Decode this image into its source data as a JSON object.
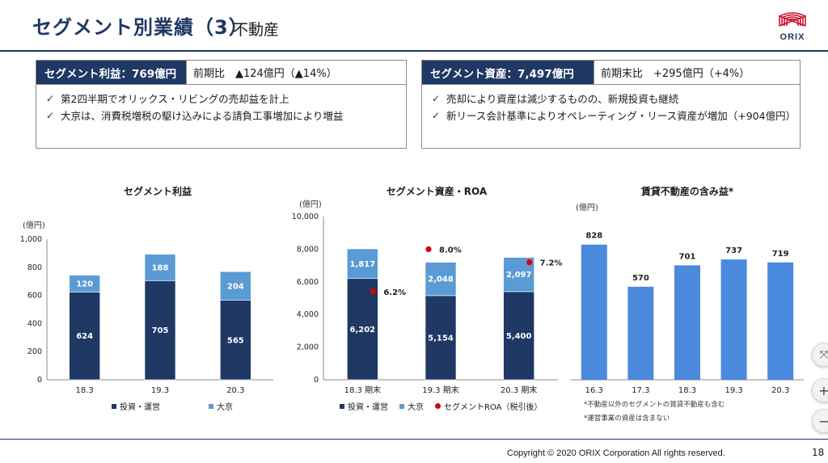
{
  "header": {
    "title": "セグメント別業績（3）",
    "subtitle": "不動産",
    "logo_text": "ORIX"
  },
  "summary_left": {
    "label": "セグメント利益：769億円",
    "compare": "前期比　▲124億円（▲14%）",
    "bullets": [
      "第2四半期でオリックス・リビングの売却益を計上",
      "大京は、消費税増税の駆け込みによる請負工事増加により増益"
    ]
  },
  "summary_right": {
    "label": "セグメント資産：7,497億円",
    "compare": "前期末比　+295億円（+4%）",
    "bullets": [
      "売却により資産は減少するものの、新規投資も継続",
      "新リース会計基準によりオペレーティング・リース資産が増加（+904億円）"
    ]
  },
  "colors": {
    "navy": "#1f3864",
    "light_blue": "#5b9bd5",
    "mid_blue": "#4a89dc",
    "red": "#e00000"
  },
  "chart_data": [
    {
      "type": "bar",
      "stacked": true,
      "title": "セグメント利益",
      "unit": "(億円)",
      "categories": [
        "18.3",
        "19.3",
        "20.3"
      ],
      "series": [
        {
          "name": "投資・運営",
          "values": [
            624,
            705,
            565
          ]
        },
        {
          "name": "大京",
          "values": [
            120,
            188,
            204
          ]
        }
      ],
      "ylim": [
        0,
        1000
      ],
      "yticks": [
        "0",
        "200",
        "400",
        "600",
        "800",
        "1,000"
      ],
      "value_labels": [
        [
          "624",
          "705",
          "565"
        ],
        [
          "120",
          "188",
          "204"
        ]
      ],
      "legend": "bottom"
    },
    {
      "type": "bar",
      "stacked": true,
      "title": "セグメント資産・ROA",
      "unit": "(億円)",
      "categories": [
        "18.3 期末",
        "19.3 期末",
        "20.3 期末"
      ],
      "series": [
        {
          "name": "投資・運営",
          "values": [
            6202,
            5154,
            5400
          ]
        },
        {
          "name": "大京",
          "values": [
            1817,
            2048,
            2097
          ]
        }
      ],
      "roa": {
        "name": "セグメントROA（税引後）",
        "values": [
          6.2,
          8.0,
          7.2
        ],
        "labels": [
          "6.2%",
          "8.0%",
          "7.2%"
        ]
      },
      "ylim": [
        0,
        10000
      ],
      "yticks": [
        "0",
        "2,000",
        "4,000",
        "6,000",
        "8,000",
        "10,000"
      ],
      "value_labels": [
        [
          "6,202",
          "5,154",
          "5,400"
        ],
        [
          "1,817",
          "2,048",
          "2,097"
        ]
      ],
      "legend": "bottom"
    },
    {
      "type": "bar",
      "title": "賃貸不動産の含み益*",
      "unit": "(億円)",
      "categories": [
        "16.3",
        "17.3",
        "18.3",
        "19.3",
        "20.3"
      ],
      "values": [
        828,
        570,
        701,
        737,
        719
      ],
      "value_labels": [
        "828",
        "570",
        "701",
        "737",
        "719"
      ],
      "ylim": [
        0,
        1000
      ],
      "notes": [
        "*不動産以外のセグメントの賃貸不動産も含む",
        "*運営事業の資産は含まない"
      ]
    }
  ],
  "footer": {
    "copyright": "Copyright © 2020 ORIX Corporation  All rights reserved.",
    "page": "18"
  },
  "viewer_controls": {
    "fit_icon": "⤧",
    "zoom_in": "+",
    "zoom_out": "−"
  }
}
